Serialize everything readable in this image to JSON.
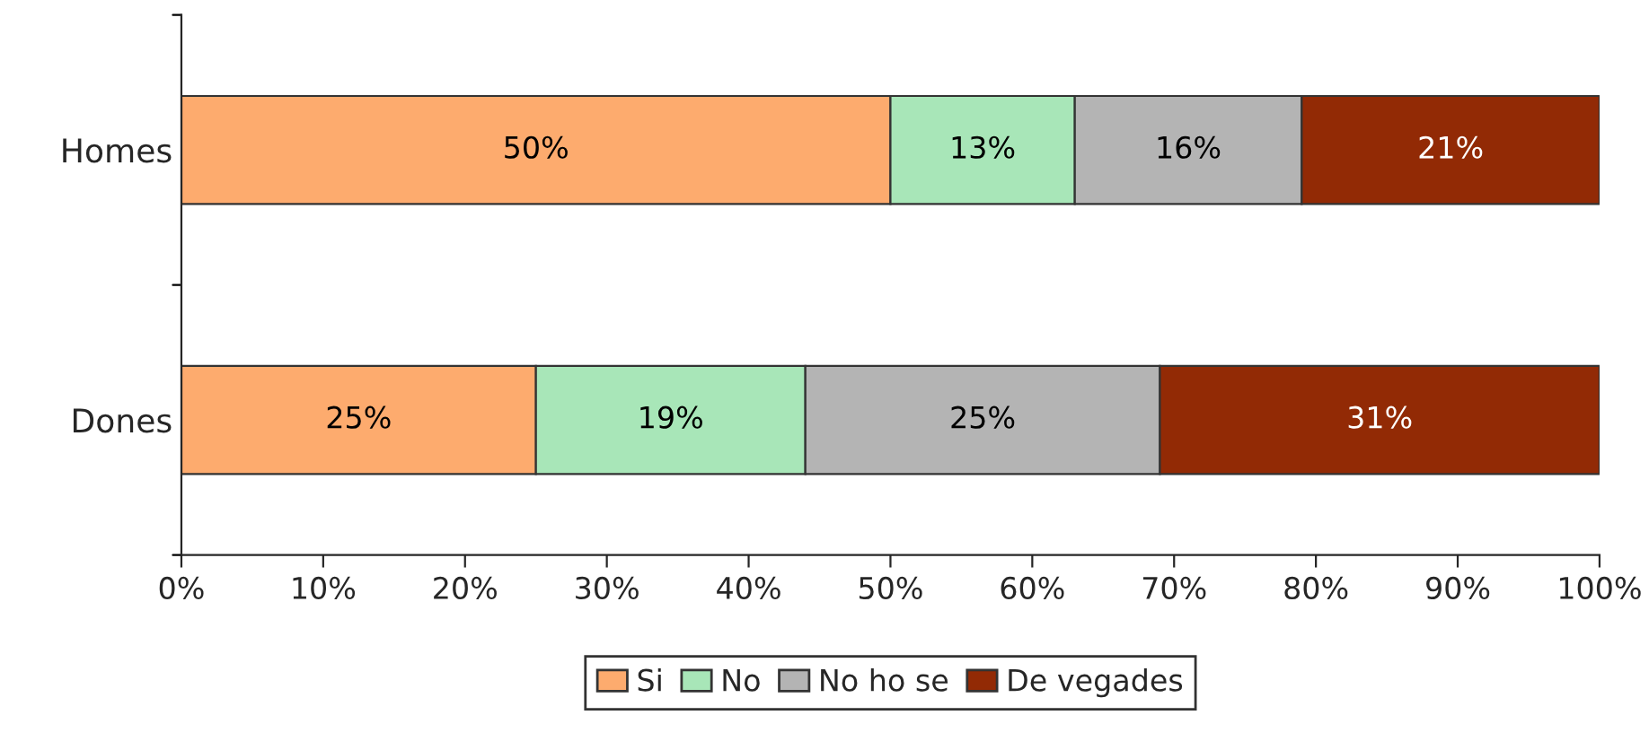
{
  "chart_data": {
    "type": "bar",
    "orientation": "horizontal",
    "stacked": true,
    "categories": [
      "Homes",
      "Dones"
    ],
    "series": [
      {
        "name": "Si",
        "color": "#fdab6e",
        "values": [
          50,
          25
        ],
        "value_labels": [
          "50%",
          "25%"
        ]
      },
      {
        "name": "No",
        "color": "#a8e6b8",
        "values": [
          13,
          19
        ],
        "value_labels": [
          "13%",
          "19%"
        ]
      },
      {
        "name": "No ho se",
        "color": "#b4b4b4",
        "values": [
          16,
          25
        ],
        "value_labels": [
          "16%",
          "25%"
        ]
      },
      {
        "name": "De vegades",
        "color": "#922a05",
        "values": [
          21,
          31
        ],
        "value_labels": [
          "21%",
          "31%"
        ]
      }
    ],
    "xlim": [
      0,
      100
    ],
    "xticks": [
      {
        "value": 0,
        "label": "0%"
      },
      {
        "value": 10,
        "label": "10%"
      },
      {
        "value": 20,
        "label": "20%"
      },
      {
        "value": 30,
        "label": "30%"
      },
      {
        "value": 40,
        "label": "40%"
      },
      {
        "value": 50,
        "label": "50%"
      },
      {
        "value": 60,
        "label": "60%"
      },
      {
        "value": 70,
        "label": "70%"
      },
      {
        "value": 80,
        "label": "80%"
      },
      {
        "value": 90,
        "label": "90%"
      },
      {
        "value": 100,
        "label": "100%"
      }
    ],
    "grid": false,
    "legend": "bottom"
  }
}
